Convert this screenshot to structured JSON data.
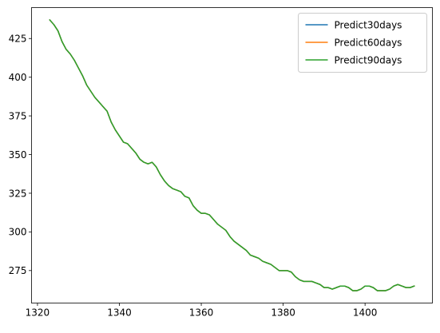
{
  "chart_data": {
    "type": "line",
    "title": "",
    "xlabel": "",
    "ylabel": "",
    "xlim": [
      1318.55,
      1416.45
    ],
    "ylim": [
      254.0,
      445.0
    ],
    "xticks": [
      1320,
      1340,
      1360,
      1380,
      1400
    ],
    "yticks": [
      275,
      300,
      325,
      350,
      375,
      400,
      425
    ],
    "grid": false,
    "legend_position": "top-right",
    "x": [
      1323,
      1324,
      1325,
      1326,
      1327,
      1328,
      1329,
      1330,
      1331,
      1332,
      1333,
      1334,
      1335,
      1336,
      1337,
      1338,
      1339,
      1340,
      1341,
      1342,
      1343,
      1344,
      1345,
      1346,
      1347,
      1348,
      1349,
      1350,
      1351,
      1352,
      1353,
      1354,
      1355,
      1356,
      1357,
      1358,
      1359,
      1360,
      1361,
      1362,
      1363,
      1364,
      1365,
      1366,
      1367,
      1368,
      1369,
      1370,
      1371,
      1372,
      1373,
      1374,
      1375,
      1376,
      1377,
      1378,
      1379,
      1380,
      1381,
      1382,
      1383,
      1384,
      1385,
      1386,
      1387,
      1388,
      1389,
      1390,
      1391,
      1392,
      1393,
      1394,
      1395,
      1396,
      1397,
      1398,
      1399,
      1400,
      1401,
      1402,
      1403,
      1404,
      1405,
      1406,
      1407,
      1408,
      1409,
      1410,
      1411,
      1412
    ],
    "series": [
      {
        "name": "Predict30days",
        "color": "#1f77b4",
        "values": [
          437,
          434,
          430,
          423,
          418,
          415,
          411,
          406,
          401,
          395,
          391,
          387,
          384,
          381,
          378,
          371,
          366,
          362,
          358,
          357,
          354,
          351,
          347,
          345,
          344,
          345,
          342,
          337,
          333,
          330,
          328,
          327,
          326,
          323,
          322,
          317,
          314,
          312,
          312,
          311,
          308,
          305,
          303,
          301,
          297,
          294,
          292,
          290,
          288,
          285,
          284,
          283,
          281,
          280,
          279,
          277,
          275,
          275,
          275,
          274,
          271,
          269,
          268,
          268,
          268,
          267,
          266,
          264,
          264,
          263,
          264,
          265,
          265,
          264,
          262,
          262,
          263,
          265,
          265,
          264,
          262,
          262,
          262,
          263,
          265,
          266,
          265,
          264,
          264,
          265
        ]
      },
      {
        "name": "Predict60days",
        "color": "#ff7f0e",
        "values": [
          437,
          434,
          430,
          423,
          418,
          415,
          411,
          406,
          401,
          395,
          391,
          387,
          384,
          381,
          378,
          371,
          366,
          362,
          358,
          357,
          354,
          351,
          347,
          345,
          344,
          345,
          342,
          337,
          333,
          330,
          328,
          327,
          326,
          323,
          322,
          317,
          314,
          312,
          312,
          311,
          308,
          305,
          303,
          301,
          297,
          294,
          292,
          290,
          288,
          285,
          284,
          283,
          281,
          280,
          279,
          277,
          275,
          275,
          275,
          274,
          271,
          269,
          268,
          268,
          268,
          267,
          266,
          264,
          264,
          263,
          264,
          265,
          265,
          264,
          262,
          262,
          263,
          265,
          265,
          264,
          262,
          262,
          262,
          263,
          265,
          266,
          265,
          264,
          264,
          265
        ]
      },
      {
        "name": "Predict90days",
        "color": "#2ca02c",
        "values": [
          437,
          434,
          430,
          423,
          418,
          415,
          411,
          406,
          401,
          395,
          391,
          387,
          384,
          381,
          378,
          371,
          366,
          362,
          358,
          357,
          354,
          351,
          347,
          345,
          344,
          345,
          342,
          337,
          333,
          330,
          328,
          327,
          326,
          323,
          322,
          317,
          314,
          312,
          312,
          311,
          308,
          305,
          303,
          301,
          297,
          294,
          292,
          290,
          288,
          285,
          284,
          283,
          281,
          280,
          279,
          277,
          275,
          275,
          275,
          274,
          271,
          269,
          268,
          268,
          268,
          267,
          266,
          264,
          264,
          263,
          264,
          265,
          265,
          264,
          262,
          262,
          263,
          265,
          265,
          264,
          262,
          262,
          262,
          263,
          265,
          266,
          265,
          264,
          264,
          265
        ]
      }
    ]
  }
}
